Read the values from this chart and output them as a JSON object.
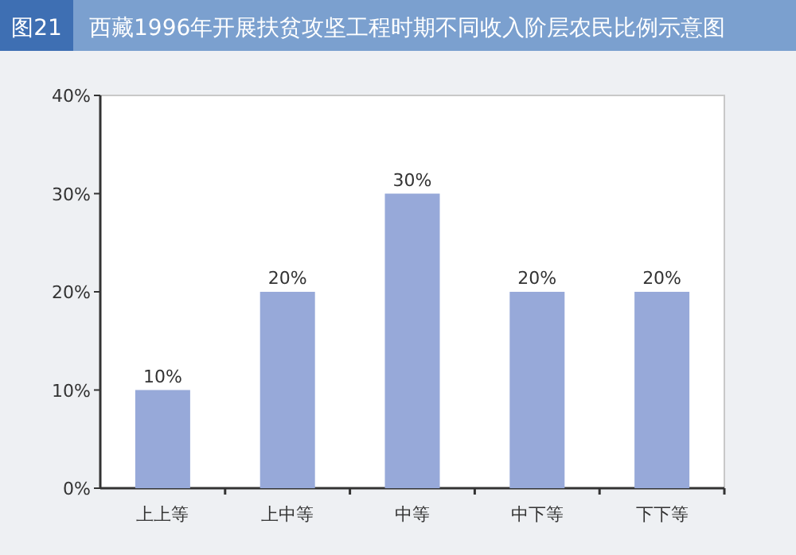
{
  "chart_data": {
    "type": "bar",
    "title": "图21",
    "subtitle": "西藏1996年开展扶贫攻坚工程时期不同收入阶层农民比例示意图",
    "categories": [
      "上上等",
      "上中等",
      "中等",
      "中下等",
      "下下等"
    ],
    "values": [
      10,
      20,
      30,
      20,
      20
    ],
    "color": "#97a9d9",
    "ylim": [
      0,
      40
    ],
    "yticks": [
      {
        "value": 0,
        "label": "0%"
      },
      {
        "value": 10,
        "label": "10%"
      },
      {
        "value": 20,
        "label": "20%"
      },
      {
        "value": 30,
        "label": "30%"
      },
      {
        "value": 40,
        "label": "40%"
      }
    ],
    "value_labels": [
      "10%",
      "20%",
      "30%",
      "20%",
      "20%"
    ],
    "grid": false
  }
}
